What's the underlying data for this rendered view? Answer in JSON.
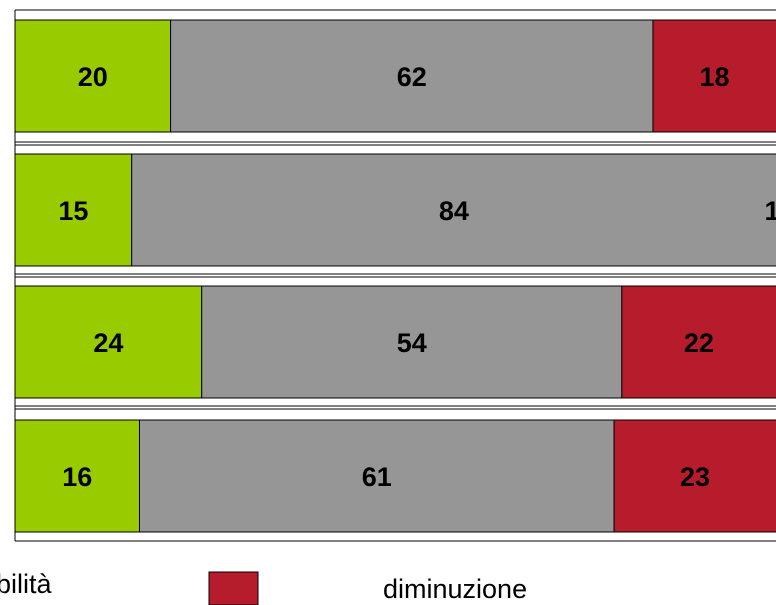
{
  "chart_data": {
    "type": "bar",
    "orientation": "horizontal",
    "stacked": true,
    "percent": true,
    "title": "",
    "xlabel": "",
    "ylabel": "",
    "xlim": [
      0,
      100
    ],
    "grid": false,
    "categories": [
      "",
      "",
      "",
      ""
    ],
    "series": [
      {
        "name": "",
        "values": [
          20,
          15,
          24,
          16
        ],
        "labels": [
          "20",
          "15",
          "24",
          "16"
        ]
      },
      {
        "name": "",
        "values": [
          62,
          84,
          54,
          61
        ],
        "labels": [
          "62",
          "84",
          "54",
          "61"
        ]
      },
      {
        "name": "",
        "values": [
          18,
          1,
          22,
          23
        ],
        "labels": [
          "18",
          "1",
          "22",
          "23"
        ]
      }
    ],
    "legend": {
      "placement": "bottom",
      "entries": [
        {
          "text": "bilità"
        },
        {
          "text": "diminuzione"
        }
      ]
    }
  },
  "colors": {
    "series": [
      "#99cc00",
      "#969696",
      "#b71c2c"
    ],
    "frame": "#000000"
  }
}
